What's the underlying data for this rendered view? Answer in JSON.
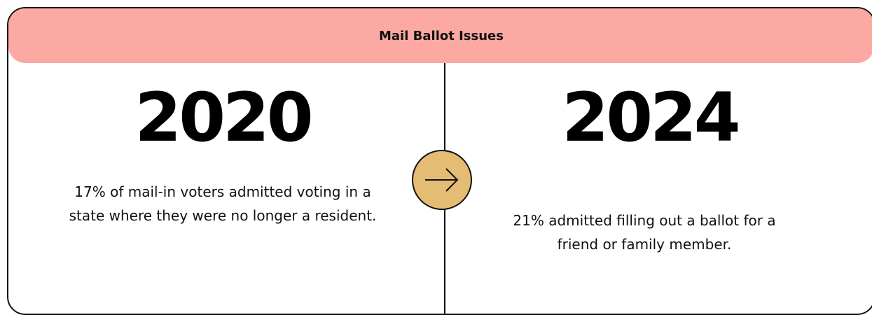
{
  "header": {
    "title": "Mail Ballot Issues"
  },
  "panels": [
    {
      "year": "2020",
      "text": "17% of mail-in voters admitted voting in a state where they were no longer a resident."
    },
    {
      "year": "2024",
      "text": "21% admitted filling out a ballot for a friend or family member."
    }
  ]
}
